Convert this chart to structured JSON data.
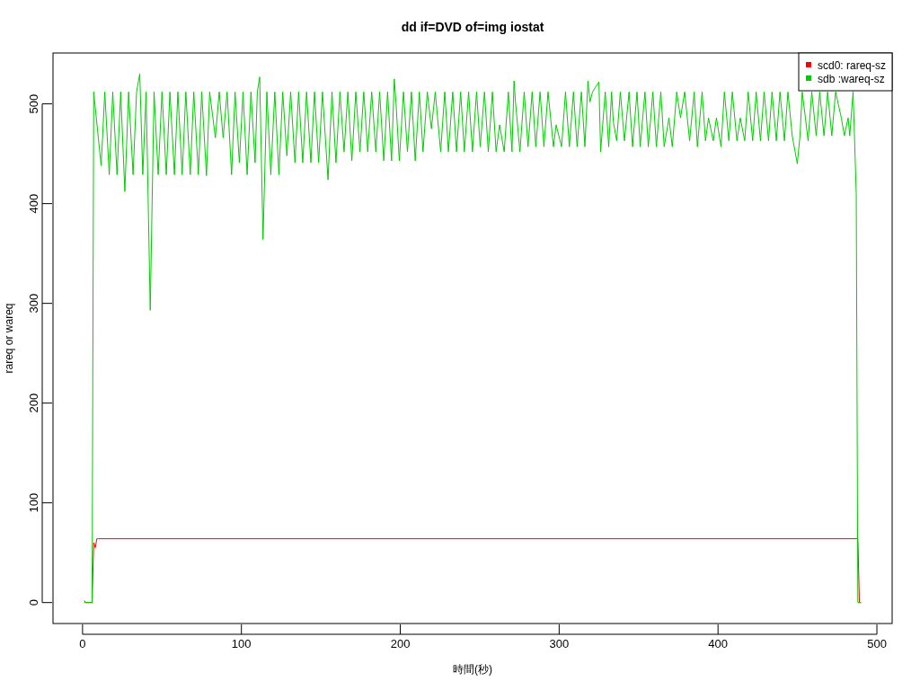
{
  "chart_data": {
    "type": "line",
    "title": "dd if=DVD of=img iostat",
    "xlabel": "時間(秒)",
    "ylabel": "rareq or wareq",
    "xlim": [
      -18.6,
      509.6
    ],
    "ylim": [
      -21,
      551
    ],
    "xticks": [
      0,
      100,
      200,
      300,
      400,
      500
    ],
    "yticks": [
      0,
      100,
      200,
      300,
      400,
      500
    ],
    "grid": false,
    "legend": "top right",
    "line_style": "solid",
    "marker": "none",
    "series": [
      {
        "name": "scd0: rareq-sz",
        "color": "#ff0000",
        "x": [
          1,
          2,
          6,
          7,
          8,
          9,
          10,
          488,
          489,
          490
        ],
        "values": [
          2,
          0,
          0,
          60,
          55,
          64,
          64,
          64,
          0,
          0
        ]
      },
      {
        "name": "sdb :wareq-sz",
        "color": "#00cd00",
        "x": [
          1,
          6,
          7,
          11.7,
          14,
          16.8,
          19,
          21.7,
          24,
          26.6,
          29,
          31.8,
          34,
          36,
          37.9,
          40,
          42.6,
          45,
          47.6,
          50,
          52.7,
          55,
          57.8,
          60,
          62.7,
          65,
          67.8,
          70,
          72.9,
          75,
          78,
          80,
          83.6,
          86,
          88.5,
          91,
          93.8,
          96,
          98.7,
          101,
          103.6,
          106,
          108.6,
          110,
          111.5,
          113.6,
          116,
          118.5,
          121,
          123.6,
          126,
          128.6,
          131,
          133.7,
          136,
          138.6,
          141,
          143.7,
          146,
          148.6,
          151,
          154.5,
          157,
          159.5,
          162,
          164.6,
          167,
          169.5,
          172,
          174.6,
          177,
          179.5,
          182,
          184.6,
          187,
          189.6,
          192,
          194.5,
          196.2,
          197.3,
          199.4,
          202,
          204.5,
          207,
          209.4,
          212,
          214.3,
          217,
          219.6,
          222,
          225.4,
          228,
          230.3,
          233,
          235.4,
          238,
          240.3,
          243,
          245.4,
          248,
          250.3,
          253,
          255.4,
          258,
          260.3,
          262.5,
          265.4,
          268,
          270.3,
          271.6,
          272.5,
          275.3,
          278,
          280.4,
          283,
          285.3,
          288,
          290.4,
          293,
          296.4,
          298.1,
          301.5,
          304,
          306.4,
          309,
          311.3,
          314,
          316.2,
          318.1,
          319.4,
          321,
          325,
          326.1,
          329,
          331.2,
          333,
          334.1,
          336.2,
          338.5,
          341.1,
          344,
          346.2,
          349,
          351,
          354,
          356.1,
          359,
          361.2,
          364,
          366.1,
          369.1,
          371.2,
          374,
          376.4,
          379,
          382.1,
          385,
          387,
          390,
          392.1,
          394,
          397,
          399,
          401.9,
          404,
          406.8,
          409,
          411.9,
          414,
          416.8,
          419,
          421.8,
          424,
          426.7,
          429,
          431.8,
          434,
          436.7,
          439,
          441.8,
          444,
          446.7,
          449.9,
          451.6,
          453,
          455,
          456.7,
          459,
          461.8,
          464,
          466.7,
          469,
          471.6,
          474,
          477.6,
          479.5,
          481.9,
          482.9,
          485,
          487,
          488,
          490
        ],
        "values": [
          0,
          0,
          512,
          438,
          512,
          429,
          512,
          429,
          512,
          412,
          512,
          429,
          512,
          530,
          429,
          512,
          293,
          512,
          429,
          512,
          429,
          512,
          429,
          512,
          429,
          512,
          429,
          512,
          429,
          512,
          428,
          512,
          466,
          512,
          466,
          512,
          429,
          512,
          441,
          512,
          429,
          512,
          441,
          512,
          527,
          364,
          512,
          429,
          512,
          429,
          512,
          448,
          512,
          441,
          512,
          441,
          512,
          441,
          512,
          441,
          512,
          424,
          512,
          441,
          512,
          452,
          512,
          443,
          512,
          452,
          512,
          452,
          512,
          452,
          512,
          443,
          512,
          443,
          525,
          501,
          443,
          512,
          452,
          512,
          443,
          512,
          452,
          512,
          475,
          512,
          452,
          512,
          452,
          512,
          452,
          512,
          452,
          512,
          452,
          512,
          457,
          512,
          452,
          512,
          452,
          479,
          452,
          512,
          452,
          523,
          502,
          452,
          512,
          457,
          512,
          457,
          512,
          457,
          512,
          457,
          479,
          457,
          512,
          457,
          512,
          457,
          512,
          457,
          523,
          502,
          512,
          522,
          452,
          512,
          457,
          512,
          482,
          463,
          512,
          463,
          512,
          457,
          512,
          457,
          512,
          457,
          512,
          457,
          512,
          457,
          486,
          457,
          512,
          486,
          512,
          463,
          512,
          457,
          512,
          463,
          486,
          463,
          486,
          457,
          512,
          463,
          512,
          463,
          486,
          463,
          512,
          463,
          512,
          463,
          512,
          463,
          512,
          463,
          512,
          463,
          512,
          468,
          440,
          468,
          512,
          486,
          463,
          512,
          468,
          512,
          468,
          512,
          468,
          512,
          486,
          468,
          486,
          468,
          512,
          410,
          0,
          0
        ]
      }
    ]
  }
}
